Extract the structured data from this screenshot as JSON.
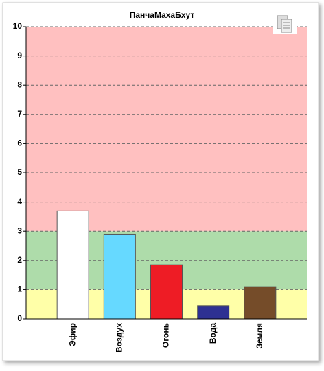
{
  "chart_data": {
    "type": "bar",
    "title": "ПанчаМахаБхут",
    "categories": [
      "Эфир",
      "Воздух",
      "Огонь",
      "Вода",
      "Земля"
    ],
    "values": [
      3.7,
      2.9,
      1.85,
      0.45,
      1.1
    ],
    "colors": [
      "#ffffff",
      "#66d9ff",
      "#ee1c25",
      "#2e3192",
      "#754c29"
    ],
    "ylim": [
      0,
      10
    ],
    "yticks": [
      0,
      1,
      2,
      3,
      4,
      5,
      6,
      7,
      8,
      9,
      10
    ],
    "grid": true,
    "bands": [
      {
        "from": 0,
        "to": 1,
        "color": "#ffffa8"
      },
      {
        "from": 1,
        "to": 3,
        "color": "#aedcaa"
      },
      {
        "from": 3,
        "to": 10,
        "color": "#ffc0c0"
      }
    ]
  }
}
